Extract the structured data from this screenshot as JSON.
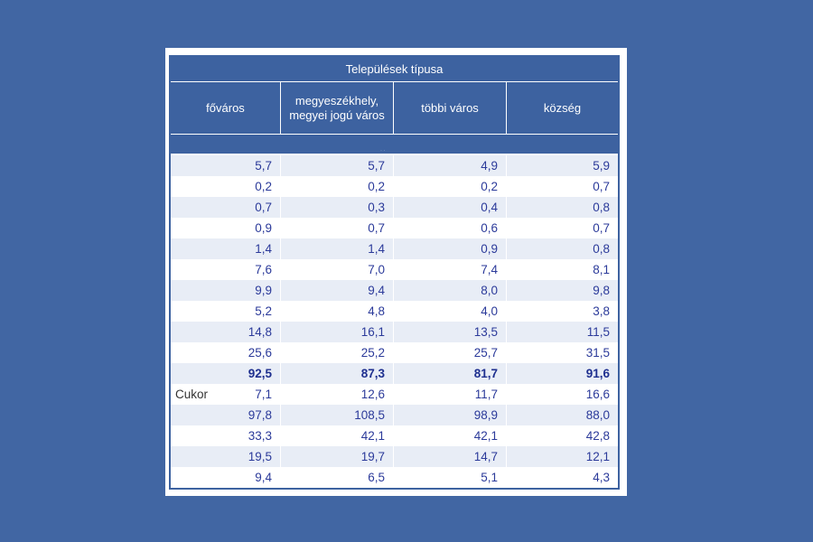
{
  "table": {
    "group_header": "Települések típusa",
    "columns": [
      "főváros",
      "megyeszékhely, megyei jogú város",
      "többi város",
      "község"
    ],
    "band_mark": "· ·",
    "rows": [
      {
        "label": "",
        "values": [
          "5,7",
          "5,7",
          "4,9",
          "5,9"
        ],
        "shaded": true,
        "bold": false
      },
      {
        "label": "",
        "values": [
          "0,2",
          "0,2",
          "0,2",
          "0,7"
        ],
        "shaded": false,
        "bold": false
      },
      {
        "label": "",
        "values": [
          "0,7",
          "0,3",
          "0,4",
          "0,8"
        ],
        "shaded": true,
        "bold": false
      },
      {
        "label": "",
        "values": [
          "0,9",
          "0,7",
          "0,6",
          "0,7"
        ],
        "shaded": false,
        "bold": false
      },
      {
        "label": "",
        "values": [
          "1,4",
          "1,4",
          "0,9",
          "0,8"
        ],
        "shaded": true,
        "bold": false
      },
      {
        "label": "",
        "values": [
          "7,6",
          "7,0",
          "7,4",
          "8,1"
        ],
        "shaded": false,
        "bold": false
      },
      {
        "label": "",
        "values": [
          "9,9",
          "9,4",
          "8,0",
          "9,8"
        ],
        "shaded": true,
        "bold": false
      },
      {
        "label": "",
        "values": [
          "5,2",
          "4,8",
          "4,0",
          "3,8"
        ],
        "shaded": false,
        "bold": false
      },
      {
        "label": "",
        "values": [
          "14,8",
          "16,1",
          "13,5",
          "11,5"
        ],
        "shaded": true,
        "bold": false
      },
      {
        "label": "",
        "values": [
          "25,6",
          "25,2",
          "25,7",
          "31,5"
        ],
        "shaded": false,
        "bold": false
      },
      {
        "label": "",
        "values": [
          "92,5",
          "87,3",
          "81,7",
          "91,6"
        ],
        "shaded": true,
        "bold": true
      },
      {
        "label": "Cukor",
        "values": [
          "7,1",
          "12,6",
          "11,7",
          "16,6"
        ],
        "shaded": false,
        "bold": false
      },
      {
        "label": "",
        "values": [
          "97,8",
          "108,5",
          "98,9",
          "88,0"
        ],
        "shaded": true,
        "bold": false
      },
      {
        "label": "",
        "values": [
          "33,3",
          "42,1",
          "42,1",
          "42,8"
        ],
        "shaded": false,
        "bold": false
      },
      {
        "label": "",
        "values": [
          "19,5",
          "19,7",
          "14,7",
          "12,1"
        ],
        "shaded": true,
        "bold": false
      },
      {
        "label": "",
        "values": [
          "9,4",
          "6,5",
          "5,1",
          "4,3"
        ],
        "shaded": false,
        "bold": false
      }
    ]
  },
  "colors": {
    "background": "#4166a3",
    "header": "#3d62a0",
    "row_shade": "#e8edf6",
    "value_text": "#2b3a9a"
  }
}
